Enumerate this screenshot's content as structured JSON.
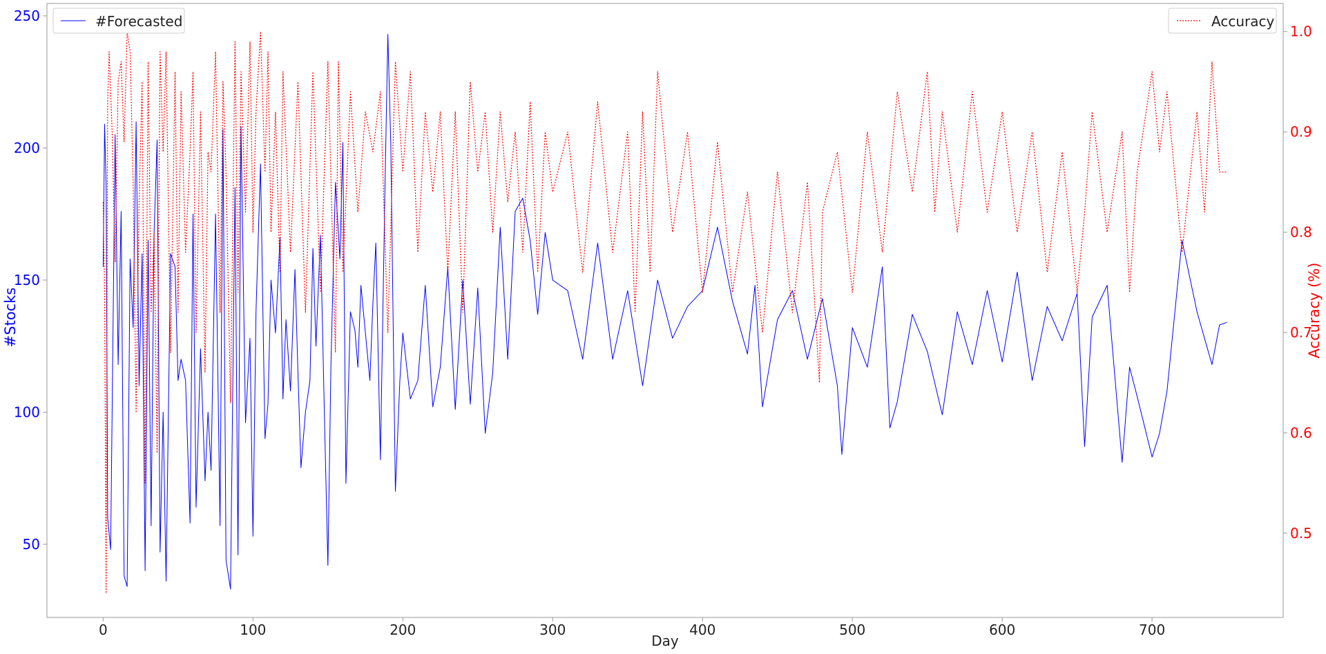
{
  "chart_data": {
    "type": "line",
    "xlabel": "Day",
    "xlim": [
      -37.5,
      787.5
    ],
    "xticks": [
      0,
      100,
      200,
      300,
      400,
      500,
      600,
      700
    ],
    "left_axis": {
      "label": "#Stocks",
      "ylim": [
        22.3,
        254.7
      ],
      "ticks": [
        50,
        100,
        150,
        200,
        250
      ],
      "color": "#0000ff"
    },
    "right_axis": {
      "label": "Accuracy (%)",
      "ylim": [
        0.416,
        1.028
      ],
      "ticks": [
        0.5,
        0.6,
        0.7,
        0.8,
        0.9,
        1.0
      ],
      "color": "#ff0000"
    },
    "grid": false,
    "series": [
      {
        "name": "#Forecasted",
        "axis": "left",
        "color": "#0000ff",
        "linestyle": "solid",
        "legend_position": "top-left",
        "x": [
          0,
          1,
          2,
          3,
          5,
          8,
          10,
          12,
          14,
          16,
          18,
          20,
          22,
          24,
          26,
          28,
          30,
          32,
          34,
          36,
          38,
          40,
          42,
          45,
          48,
          50,
          52,
          55,
          58,
          60,
          62,
          65,
          68,
          70,
          72,
          75,
          78,
          80,
          82,
          85,
          88,
          90,
          92,
          95,
          98,
          100,
          102,
          105,
          108,
          110,
          112,
          115,
          118,
          120,
          122,
          125,
          128,
          130,
          132,
          135,
          138,
          140,
          142,
          145,
          148,
          150,
          152,
          155,
          158,
          160,
          162,
          165,
          168,
          170,
          172,
          175,
          178,
          180,
          182,
          185,
          188,
          190,
          192,
          195,
          198,
          200,
          205,
          210,
          215,
          220,
          225,
          230,
          235,
          240,
          245,
          250,
          255,
          260,
          265,
          270,
          275,
          280,
          285,
          290,
          295,
          300,
          310,
          320,
          330,
          340,
          350,
          360,
          370,
          380,
          390,
          400,
          410,
          420,
          430,
          435,
          440,
          450,
          460,
          470,
          480,
          490,
          493,
          500,
          510,
          520,
          525,
          530,
          540,
          550,
          560,
          570,
          580,
          590,
          600,
          610,
          620,
          630,
          640,
          650,
          655,
          660,
          670,
          680,
          685,
          690,
          700,
          705,
          710,
          720,
          730,
          740,
          745,
          750
        ],
        "values": [
          155,
          209,
          185,
          60,
          48,
          205,
          118,
          176,
          38,
          34,
          158,
          132,
          210,
          110,
          160,
          40,
          165,
          57,
          168,
          203,
          47,
          100,
          36,
          160,
          155,
          112,
          120,
          112,
          58,
          175,
          64,
          124,
          74,
          100,
          78,
          175,
          57,
          207,
          44,
          33,
          185,
          46,
          208,
          96,
          128,
          53,
          138,
          194,
          90,
          103,
          150,
          130,
          166,
          105,
          135,
          108,
          154,
          115,
          79,
          100,
          112,
          162,
          125,
          167,
          90,
          42,
          118,
          187,
          158,
          202,
          73,
          138,
          131,
          117,
          148,
          130,
          112,
          141,
          164,
          82,
          183,
          243,
          201,
          70,
          112,
          130,
          105,
          112,
          148,
          102,
          117,
          155,
          101,
          150,
          103,
          147,
          92,
          115,
          170,
          120,
          176,
          181,
          165,
          137,
          168,
          150,
          146,
          120,
          164,
          120,
          146,
          110,
          150,
          128,
          140,
          146,
          170,
          142,
          122,
          148,
          102,
          135,
          146,
          120,
          143,
          110,
          84,
          132,
          117,
          155,
          94,
          104,
          137,
          123,
          99,
          138,
          118,
          146,
          119,
          153,
          112,
          140,
          127,
          145,
          87,
          136,
          148,
          81,
          117,
          106,
          83,
          92,
          108,
          165,
          138,
          118,
          133,
          134
        ]
      },
      {
        "name": "Accuracy",
        "axis": "right",
        "color": "#ff0000",
        "linestyle": "dotted",
        "legend_position": "top-right",
        "x": [
          0,
          1,
          2,
          3,
          4,
          6,
          8,
          10,
          12,
          14,
          16,
          18,
          20,
          22,
          24,
          26,
          28,
          30,
          32,
          34,
          36,
          38,
          40,
          42,
          45,
          48,
          50,
          52,
          55,
          58,
          60,
          62,
          65,
          68,
          70,
          72,
          75,
          78,
          80,
          82,
          85,
          88,
          90,
          92,
          95,
          98,
          100,
          102,
          105,
          108,
          110,
          112,
          115,
          118,
          120,
          125,
          130,
          135,
          140,
          145,
          150,
          155,
          157,
          160,
          165,
          170,
          175,
          180,
          185,
          190,
          195,
          200,
          205,
          210,
          215,
          220,
          225,
          230,
          235,
          240,
          245,
          250,
          255,
          260,
          265,
          270,
          275,
          280,
          285,
          290,
          295,
          300,
          310,
          320,
          330,
          340,
          350,
          355,
          360,
          365,
          370,
          380,
          390,
          400,
          410,
          420,
          430,
          440,
          450,
          460,
          470,
          478,
          480,
          490,
          500,
          510,
          520,
          530,
          540,
          550,
          555,
          560,
          570,
          580,
          590,
          600,
          610,
          620,
          630,
          640,
          650,
          655,
          660,
          670,
          680,
          685,
          690,
          700,
          705,
          710,
          720,
          730,
          735,
          740,
          745,
          750
        ],
        "values": [
          0.83,
          0.74,
          0.44,
          0.93,
          0.98,
          0.9,
          0.77,
          0.95,
          0.97,
          0.89,
          1.0,
          0.98,
          0.85,
          0.62,
          0.83,
          0.95,
          0.55,
          0.97,
          0.72,
          0.8,
          0.58,
          0.98,
          0.88,
          0.98,
          0.68,
          0.96,
          0.72,
          0.94,
          0.78,
          0.88,
          0.96,
          0.7,
          0.92,
          0.66,
          0.88,
          0.86,
          0.98,
          0.72,
          0.95,
          0.86,
          0.63,
          0.99,
          0.74,
          0.96,
          0.82,
          0.99,
          0.8,
          0.92,
          1.0,
          0.86,
          0.98,
          0.8,
          0.92,
          0.76,
          0.96,
          0.78,
          0.95,
          0.72,
          0.96,
          0.74,
          0.97,
          0.68,
          0.97,
          0.76,
          0.94,
          0.82,
          0.92,
          0.88,
          0.94,
          0.7,
          0.97,
          0.86,
          0.96,
          0.78,
          0.92,
          0.84,
          0.92,
          0.76,
          0.92,
          0.72,
          0.95,
          0.86,
          0.92,
          0.8,
          0.92,
          0.83,
          0.9,
          0.78,
          0.93,
          0.76,
          0.9,
          0.84,
          0.9,
          0.76,
          0.93,
          0.78,
          0.9,
          0.72,
          0.92,
          0.76,
          0.96,
          0.8,
          0.9,
          0.74,
          0.89,
          0.74,
          0.84,
          0.7,
          0.86,
          0.72,
          0.85,
          0.65,
          0.82,
          0.88,
          0.74,
          0.9,
          0.78,
          0.94,
          0.84,
          0.96,
          0.82,
          0.92,
          0.8,
          0.94,
          0.82,
          0.92,
          0.8,
          0.9,
          0.76,
          0.88,
          0.74,
          0.82,
          0.92,
          0.8,
          0.9,
          0.74,
          0.86,
          0.96,
          0.88,
          0.94,
          0.78,
          0.92,
          0.82,
          0.97,
          0.86,
          0.86
        ]
      }
    ]
  }
}
